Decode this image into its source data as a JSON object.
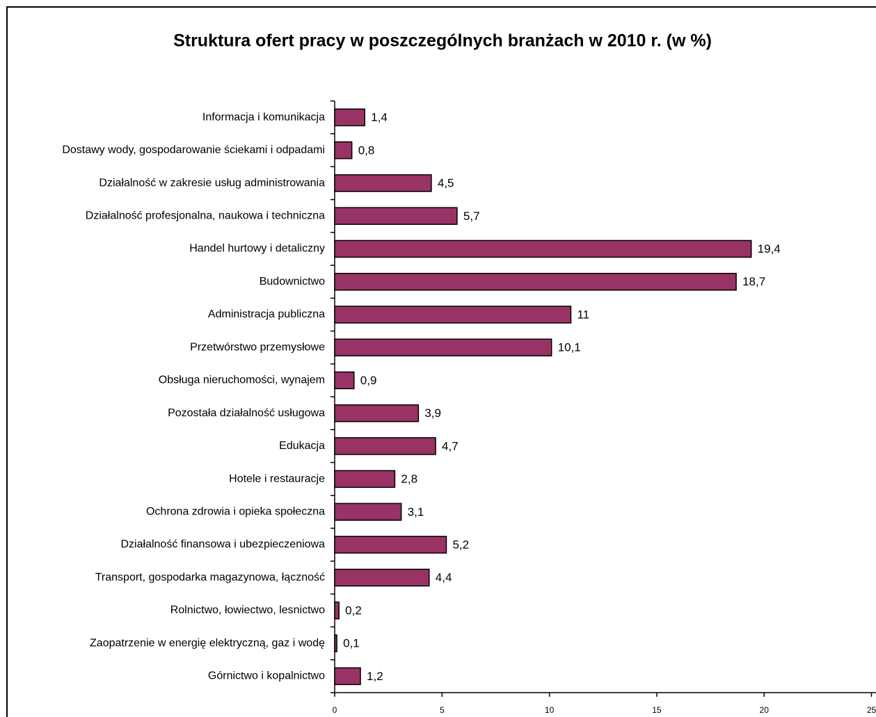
{
  "chart_data": {
    "type": "bar",
    "orientation": "horizontal",
    "title": "Struktura ofert pracy w poszczególnych branżach w 2010 r. (w %)",
    "categories": [
      "Informacja i komunikacja",
      "Dostawy wody, gospodarowanie ściekami i odpadami",
      "Działalność w zakresie usług administrowania",
      "Działalność profesjonalna, naukowa i techniczna",
      "Handel hurtowy i detaliczny",
      "Budownictwo",
      "Administracja publiczna",
      "Przetwórstwo przemysłowe",
      "Obsługa nieruchomości, wynajem",
      "Pozostała działalność usługowa",
      "Edukacja",
      "Hotele i restauracje",
      "Ochrona zdrowia i opieka społeczna",
      "Działalność finansowa i ubezpieczeniowa",
      "Transport, gospodarka magazynowa, łączność",
      "Rolnictwo, łowiectwo, lesnictwo",
      "Zaopatrzenie w energię elektryczną, gaz i wodę",
      "Górnictwo i kopalnictwo"
    ],
    "values": [
      1.4,
      0.8,
      4.5,
      5.7,
      19.4,
      18.7,
      11,
      10.1,
      0.9,
      3.9,
      4.7,
      2.8,
      3.1,
      5.2,
      4.4,
      0.2,
      0.1,
      1.2
    ],
    "value_labels": [
      "1,4",
      "0,8",
      "4,5",
      "5,7",
      "19,4",
      "18,7",
      "11",
      "10,1",
      "0,9",
      "3,9",
      "4,7",
      "2,8",
      "3,1",
      "5,2",
      "4,4",
      "0,2",
      "0,1",
      "1,2"
    ],
    "color": "#993366",
    "xlim": [
      0,
      25
    ],
    "xticks": [
      0,
      5,
      10,
      15,
      20,
      25
    ],
    "grid": false
  }
}
